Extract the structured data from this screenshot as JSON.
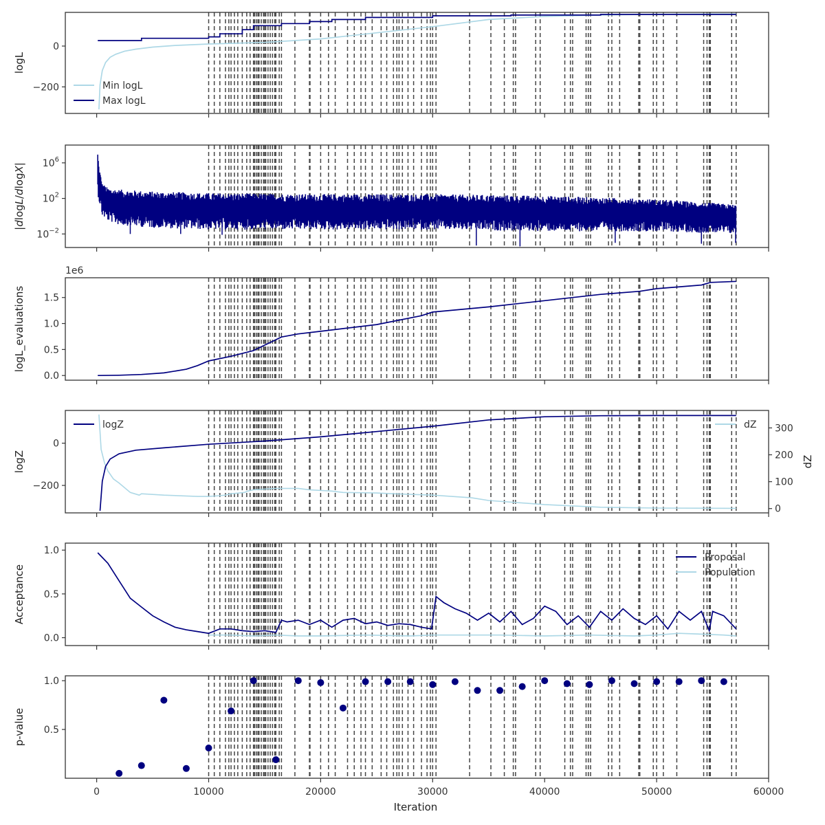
{
  "colors": {
    "navy": "#000080",
    "lightblue": "#add8e6",
    "vline": "#444444",
    "axis": "#333333"
  },
  "xaxis": {
    "label": "Iteration",
    "lim": [
      -2800,
      60000
    ],
    "ticks": [
      0,
      10000,
      20000,
      30000,
      40000,
      50000,
      60000
    ]
  },
  "iterations_max": 57100,
  "vlines": [
    10000,
    10500,
    11000,
    11500,
    11800,
    12000,
    12300,
    12600,
    13000,
    13400,
    13700,
    14000,
    14100,
    14250,
    14400,
    14500,
    14700,
    14900,
    15000,
    15100,
    15300,
    15500,
    15700,
    15900,
    16000,
    16300,
    16500,
    17700,
    19000,
    19050,
    20000,
    20700,
    21300,
    22400,
    23000,
    23600,
    24000,
    24600,
    25400,
    25900,
    26500,
    26800,
    27000,
    27300,
    27800,
    28300,
    29000,
    29500,
    29800,
    30000,
    30300,
    33300,
    35200,
    36400,
    37200,
    37400,
    39200,
    39600,
    41800,
    42300,
    42500,
    43700,
    43900,
    44100,
    45700,
    46000,
    46700,
    48400,
    48500,
    49700,
    50000,
    50600,
    51800,
    54200,
    54500,
    54700,
    54800,
    56700,
    57100
  ],
  "chart_data": [
    {
      "type": "line",
      "ylabel": "logL",
      "ylim": [
        -330,
        165
      ],
      "yticks": [
        {
          "v": -200,
          "label": "−200"
        },
        {
          "v": 0,
          "label": "0"
        }
      ],
      "legend_placement": "lower-left",
      "series": [
        {
          "name": "Min logL",
          "color": "lightblue",
          "x": [
            200,
            300,
            500,
            800,
            1200,
            1700,
            2500,
            3500,
            5000,
            7000,
            10000,
            15000,
            20000,
            25000,
            30000,
            35000,
            40000,
            45000,
            50000,
            55000,
            57100
          ],
          "y": [
            -310,
            -190,
            -120,
            -80,
            -55,
            -40,
            -25,
            -15,
            -5,
            3,
            10,
            18,
            35,
            65,
            95,
            130,
            145,
            152,
            156,
            157,
            157
          ]
        },
        {
          "name": "Max logL",
          "color": "navy",
          "x": [
            100,
            4000,
            4000,
            10000,
            10000,
            11000,
            11000,
            13000,
            13000,
            14000,
            14000,
            16500,
            16500,
            19000,
            19000,
            21000,
            21000,
            24000,
            24000,
            30000,
            30000,
            37000,
            37000,
            45000,
            45000,
            57100
          ],
          "y": [
            27,
            27,
            38,
            38,
            45,
            45,
            60,
            60,
            80,
            80,
            100,
            100,
            110,
            110,
            120,
            120,
            130,
            130,
            140,
            140,
            148,
            148,
            152,
            152,
            155,
            155
          ]
        }
      ]
    },
    {
      "type": "line",
      "ylabel": "|dlogL/dlogX|",
      "yscale": "log",
      "ylim": [
        0.0003,
        100000000
      ],
      "yticks": [
        {
          "v": 0.01,
          "base": "10",
          "exp": "−2"
        },
        {
          "v": 100,
          "base": "10",
          "exp": "2"
        },
        {
          "v": 1000000,
          "base": "10",
          "exp": "6"
        }
      ],
      "series": [
        {
          "name": "",
          "color": "navy",
          "envelope": {
            "x": [
              100,
              200,
              500,
              1000,
              2000,
              5000,
              10000,
              20000,
              30000,
              40000,
              50000,
              57100
            ],
            "upper": [
              20000000,
              500000,
              5000,
              1500,
              1000,
              600,
              400,
              300,
              300,
              200,
              80,
              20
            ],
            "lower": [
              300,
              50,
              1,
              0.3,
              0.1,
              0.05,
              0.03,
              0.03,
              0.03,
              0.02,
              0.02,
              0.01
            ]
          },
          "spikes": [
            {
              "x": 3000,
              "y": 0.01
            },
            {
              "x": 7500,
              "y": 0.01
            },
            {
              "x": 11200,
              "y": 0.008
            },
            {
              "x": 33900,
              "y": 0.0005
            },
            {
              "x": 37800,
              "y": 0.0004
            },
            {
              "x": 46300,
              "y": 0.001
            },
            {
              "x": 54000,
              "y": 0.0008
            },
            {
              "x": 57050,
              "y": 0.001
            }
          ]
        }
      ]
    },
    {
      "type": "line",
      "ylabel": "logL_evaluations",
      "yoffset_text": "1e6",
      "ylim": [
        -0.09,
        1.88
      ],
      "yticks": [
        {
          "v": 0,
          "label": "0.0"
        },
        {
          "v": 0.5,
          "label": "0.5"
        },
        {
          "v": 1.0,
          "label": "1.0"
        },
        {
          "v": 1.5,
          "label": "1.5"
        }
      ],
      "series": [
        {
          "name": "",
          "color": "navy",
          "x": [
            100,
            2000,
            4000,
            6000,
            8000,
            9000,
            10000,
            12000,
            14000,
            16500,
            18000,
            20000,
            25000,
            29000,
            30000,
            35000,
            40000,
            45000,
            48500,
            50000,
            54000,
            54800,
            57100
          ],
          "y": [
            0.0,
            0.005,
            0.02,
            0.05,
            0.12,
            0.19,
            0.28,
            0.37,
            0.48,
            0.74,
            0.8,
            0.85,
            0.98,
            1.15,
            1.22,
            1.32,
            1.44,
            1.56,
            1.62,
            1.67,
            1.74,
            1.79,
            1.81
          ]
        }
      ]
    },
    {
      "type": "line",
      "ylabel": "logZ",
      "ylim": [
        -330,
        155
      ],
      "yticks": [
        {
          "v": -200,
          "label": "−200"
        },
        {
          "v": 0,
          "label": "0"
        }
      ],
      "legend_placement": "upper-left",
      "series": [
        {
          "name": "logZ",
          "color": "navy",
          "x": [
            300,
            500,
            800,
            1200,
            2000,
            3500,
            6000,
            10000,
            15000,
            20000,
            25000,
            30000,
            35000,
            40000,
            45000,
            50000,
            57100
          ],
          "y": [
            -320,
            -180,
            -110,
            -75,
            -50,
            -33,
            -22,
            -5,
            10,
            30,
            55,
            80,
            110,
            125,
            130,
            131,
            131
          ]
        }
      ],
      "y2": {
        "ylabel": "dZ",
        "ylim": [
          -16,
          365
        ],
        "yticks": [
          {
            "v": 0,
            "label": "0"
          },
          {
            "v": 100,
            "label": "100"
          },
          {
            "v": 200,
            "label": "200"
          },
          {
            "v": 300,
            "label": "300"
          }
        ],
        "legend_placement": "upper-right",
        "series": [
          {
            "name": "dZ",
            "color": "lightblue",
            "x": [
              200,
              400,
              700,
              1000,
              1500,
              2000,
              3000,
              3800,
              4000,
              6000,
              9000,
              10000,
              11000,
              11500,
              12000,
              13200,
              13500,
              14000,
              16000,
              18000,
              19000,
              21000,
              22000,
              25000,
              26500,
              30000,
              33500,
              35000,
              40000,
              45000,
              50000,
              57100
            ],
            "y": [
              350,
              220,
              170,
              140,
              110,
              95,
              60,
              50,
              55,
              50,
              45,
              45,
              48,
              50,
              55,
              60,
              65,
              70,
              75,
              75,
              70,
              65,
              60,
              58,
              55,
              50,
              40,
              30,
              15,
              5,
              2,
              1
            ]
          }
        ]
      }
    },
    {
      "type": "line",
      "ylabel": "Acceptance",
      "ylim": [
        -0.09,
        1.08
      ],
      "yticks": [
        {
          "v": 0,
          "label": "0.0"
        },
        {
          "v": 0.5,
          "label": "0.5"
        },
        {
          "v": 1.0,
          "label": "1.0"
        }
      ],
      "legend_placement": "upper-right",
      "series": [
        {
          "name": "Proposal",
          "color": "navy",
          "x": [
            100,
            1000,
            2000,
            3000,
            4000,
            5000,
            6000,
            7000,
            8000,
            9000,
            10000,
            11000,
            12000,
            13000,
            14000,
            15000,
            16000,
            16500,
            17000,
            18000,
            19000,
            20000,
            21000,
            22000,
            23000,
            24000,
            25000,
            26000,
            27000,
            28000,
            29000,
            29900,
            30300,
            31000,
            32000,
            33000,
            34000,
            35000,
            36000,
            37000,
            38000,
            39000,
            40000,
            41000,
            42000,
            43000,
            44000,
            45000,
            46000,
            47000,
            48000,
            49000,
            50000,
            51000,
            52000,
            53000,
            54000,
            54700,
            55000,
            56000,
            57100
          ],
          "y": [
            0.97,
            0.85,
            0.65,
            0.45,
            0.35,
            0.25,
            0.18,
            0.12,
            0.09,
            0.07,
            0.05,
            0.1,
            0.1,
            0.08,
            0.07,
            0.08,
            0.06,
            0.2,
            0.18,
            0.2,
            0.15,
            0.2,
            0.12,
            0.2,
            0.22,
            0.16,
            0.18,
            0.14,
            0.16,
            0.15,
            0.12,
            0.1,
            0.47,
            0.4,
            0.33,
            0.28,
            0.2,
            0.28,
            0.18,
            0.3,
            0.15,
            0.22,
            0.36,
            0.3,
            0.15,
            0.25,
            0.12,
            0.3,
            0.2,
            0.33,
            0.22,
            0.15,
            0.25,
            0.1,
            0.3,
            0.2,
            0.3,
            0.08,
            0.3,
            0.25,
            0.1
          ]
        },
        {
          "name": "Population",
          "color": "lightblue",
          "x": [
            10000,
            12000,
            14000,
            16000,
            18000,
            20000,
            24000,
            28000,
            30000,
            33000,
            36000,
            40000,
            44000,
            48000,
            50000,
            52000,
            54000,
            56000,
            57100
          ],
          "y": [
            0.03,
            0.03,
            0.02,
            0.03,
            0.02,
            0.02,
            0.03,
            0.02,
            0.03,
            0.03,
            0.03,
            0.02,
            0.03,
            0.02,
            0.03,
            0.05,
            0.04,
            0.03,
            0.02
          ]
        }
      ]
    },
    {
      "type": "scatter",
      "ylabel": "p-value",
      "ylim": [
        0.0,
        1.05
      ],
      "yticks": [
        {
          "v": 0.5,
          "label": "0.5"
        },
        {
          "v": 1.0,
          "label": "1.0"
        }
      ],
      "series": [
        {
          "name": "",
          "color": "navy",
          "x": [
            2000,
            4000,
            6000,
            8000,
            10000,
            12000,
            14000,
            16000,
            18000,
            20000,
            22000,
            24000,
            26000,
            28000,
            30000,
            32000,
            34000,
            36000,
            38000,
            40000,
            42000,
            44000,
            46000,
            48000,
            50000,
            52000,
            54000,
            56000
          ],
          "y": [
            0.05,
            0.13,
            0.8,
            0.1,
            0.31,
            0.69,
            1.0,
            0.19,
            1.0,
            0.98,
            0.72,
            0.99,
            0.99,
            0.99,
            0.96,
            0.99,
            0.9,
            0.9,
            0.94,
            1.0,
            0.97,
            0.96,
            1.0,
            0.97,
            0.99,
            0.99,
            1.0,
            0.99
          ]
        }
      ]
    }
  ]
}
